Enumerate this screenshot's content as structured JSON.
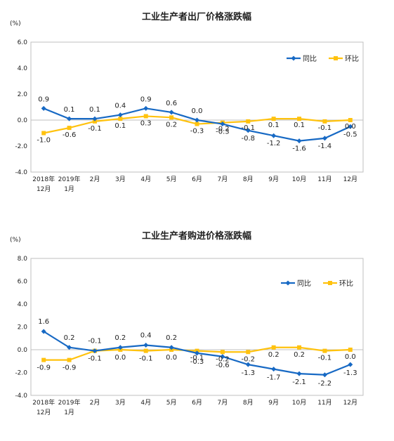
{
  "colors": {
    "yoy": "#1769c4",
    "mom": "#ffc20e",
    "axis": "#bfbfbf",
    "text": "#222222"
  },
  "chart_data": [
    {
      "type": "line",
      "title": "工业生产者出厂价格涨跌幅",
      "unit": "(%)",
      "ylim": [
        -4.0,
        6.0
      ],
      "yticks": [
        "6.0",
        "4.0",
        "2.0",
        "0.0",
        "-2.0",
        "-4.0"
      ],
      "grid": false,
      "legend_position": "top-right",
      "categories": [
        {
          "line1": "2018年",
          "line2": "12月"
        },
        {
          "line1": "2019年",
          "line2": "1月"
        },
        {
          "line1": "2月",
          "line2": ""
        },
        {
          "line1": "3月",
          "line2": ""
        },
        {
          "line1": "4月",
          "line2": ""
        },
        {
          "line1": "5月",
          "line2": ""
        },
        {
          "line1": "6月",
          "line2": ""
        },
        {
          "line1": "7月",
          "line2": ""
        },
        {
          "line1": "8月",
          "line2": ""
        },
        {
          "line1": "9月",
          "line2": ""
        },
        {
          "line1": "10月",
          "line2": ""
        },
        {
          "line1": "11月",
          "line2": ""
        },
        {
          "line1": "12月",
          "line2": ""
        }
      ],
      "series": [
        {
          "name": "同比",
          "key": "yoy",
          "values": [
            0.9,
            0.1,
            0.1,
            0.4,
            0.9,
            0.6,
            0.0,
            -0.3,
            -0.8,
            -1.2,
            -1.6,
            -1.4,
            -0.5
          ],
          "labels": [
            "0.9",
            "0.1",
            "0.1",
            "0.4",
            "0.9",
            "0.6",
            "0.0",
            "-0.3",
            "-0.8",
            "-1.2",
            "-1.6",
            "-1.4",
            "-0.5"
          ]
        },
        {
          "name": "环比",
          "key": "mom",
          "values": [
            -1.0,
            -0.6,
            -0.1,
            0.1,
            0.3,
            0.2,
            -0.3,
            -0.2,
            -0.1,
            0.1,
            0.1,
            -0.1,
            0.0
          ],
          "labels": [
            "-1.0",
            "-0.6",
            "-0.1",
            "0.1",
            "0.3",
            "0.2",
            "-0.3",
            "-0.2",
            "-0.1",
            "0.1",
            "0.1",
            "-0.1",
            "0.0"
          ]
        }
      ]
    },
    {
      "type": "line",
      "title": "工业生产者购进价格涨跌幅",
      "unit": "(%)",
      "ylim": [
        -4.0,
        8.0
      ],
      "yticks": [
        "8.0",
        "6.0",
        "4.0",
        "2.0",
        "0.0",
        "-2.0",
        "-4.0"
      ],
      "grid": false,
      "legend_position": "top-right",
      "categories": [
        {
          "line1": "2018年",
          "line2": "12月"
        },
        {
          "line1": "2019年",
          "line2": "1月"
        },
        {
          "line1": "2月",
          "line2": ""
        },
        {
          "line1": "3月",
          "line2": ""
        },
        {
          "line1": "4月",
          "line2": ""
        },
        {
          "line1": "5月",
          "line2": ""
        },
        {
          "line1": "6月",
          "line2": ""
        },
        {
          "line1": "7月",
          "line2": ""
        },
        {
          "line1": "8月",
          "line2": ""
        },
        {
          "line1": "9月",
          "line2": ""
        },
        {
          "line1": "10月",
          "line2": ""
        },
        {
          "line1": "11月",
          "line2": ""
        },
        {
          "line1": "12月",
          "line2": ""
        }
      ],
      "series": [
        {
          "name": "同比",
          "key": "yoy",
          "values": [
            1.6,
            0.2,
            -0.1,
            0.2,
            0.4,
            0.2,
            -0.3,
            -0.6,
            -1.3,
            -1.7,
            -2.1,
            -2.2,
            -1.3
          ],
          "labels": [
            "1.6",
            "0.2",
            "-0.1",
            "0.2",
            "0.4",
            "0.2",
            "-0.3",
            "-0.6",
            "-1.3",
            "-1.7",
            "-2.1",
            "-2.2",
            "-1.3"
          ]
        },
        {
          "name": "环比",
          "key": "mom",
          "values": [
            -0.9,
            -0.9,
            -0.1,
            0.0,
            -0.1,
            0.0,
            -0.1,
            -0.2,
            -0.2,
            0.2,
            0.2,
            -0.1,
            0.0
          ],
          "labels": [
            "-0.9",
            "-0.9",
            "-0.1",
            "0.0",
            "-0.1",
            "0.0",
            "-0.1",
            "-0.2",
            "-0.2",
            "0.2",
            "0.2",
            "-0.1",
            "0.0"
          ]
        }
      ]
    }
  ]
}
